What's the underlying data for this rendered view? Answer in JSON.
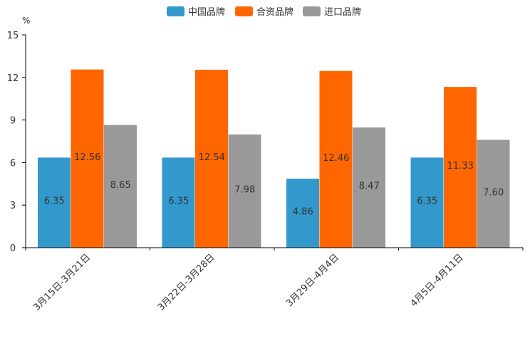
{
  "chart_data": {
    "type": "bar",
    "title": "",
    "xlabel": "",
    "ylabel": "%",
    "ylim": [
      0,
      15
    ],
    "yticks": [
      0,
      3,
      6,
      9,
      12,
      15
    ],
    "grid": false,
    "legend_position": "top-center",
    "categories": [
      "3月15日-3月21日",
      "3月22日-3月28日",
      "3月29日-4月4日",
      "4月5日-4月11日"
    ],
    "series": [
      {
        "name": "中国品牌",
        "color": "#3399cc",
        "values": [
          6.35,
          6.35,
          4.86,
          6.35
        ]
      },
      {
        "name": "合资品牌",
        "color": "#ff6600",
        "values": [
          12.56,
          12.54,
          12.46,
          11.33
        ]
      },
      {
        "name": "进口品牌",
        "color": "#999999",
        "values": [
          8.65,
          7.98,
          8.47,
          7.6
        ]
      }
    ]
  }
}
